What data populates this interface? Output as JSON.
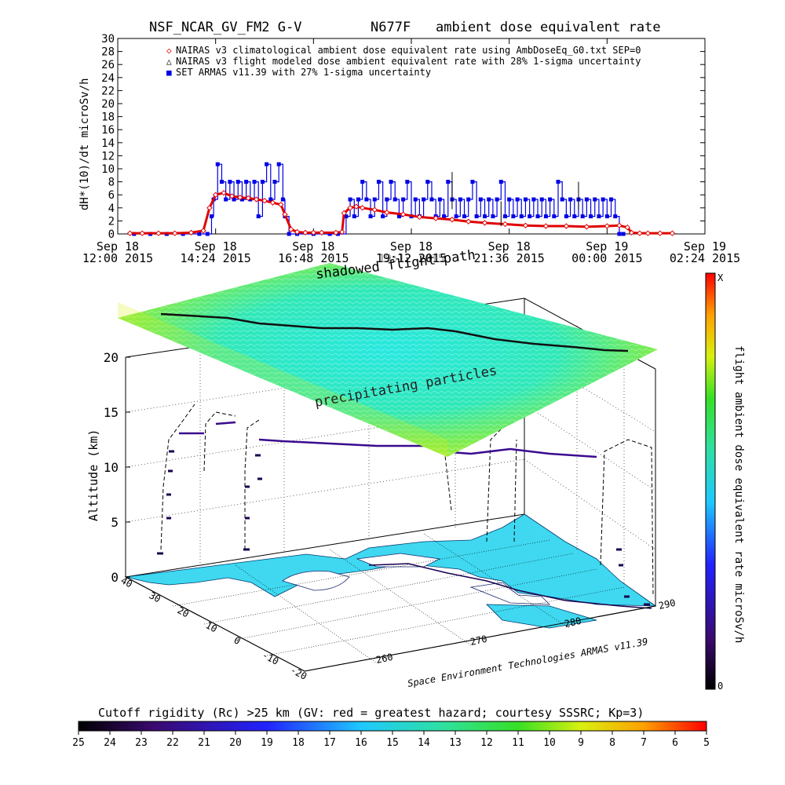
{
  "title": {
    "left": "NSF_NCAR_GV_FM2 G-V",
    "tail": "N677F",
    "right": "ambient dose equivalent rate"
  },
  "colors": {
    "nairas_clim": "#e00000",
    "nairas_flight": "#000000",
    "armas": "#0000e6",
    "ocean": "#3fd8f0",
    "land": "#ffffff",
    "colorbar_stops": [
      "#000000",
      "#3a0a6e",
      "#2222ff",
      "#1ec8ff",
      "#2fe0a0",
      "#36e025",
      "#d8f010",
      "#ffa000",
      "#ff0000"
    ]
  },
  "chart_data": [
    {
      "type": "line",
      "y_label": "dH*(10)/dt microSv/h",
      "ylim": [
        0,
        30
      ],
      "y_ticks": [
        0,
        2,
        4,
        6,
        8,
        10,
        12,
        14,
        16,
        18,
        20,
        22,
        24,
        26,
        28,
        30
      ],
      "xlim_hours": [
        12.0,
        26.4
      ],
      "x_ticks": [
        {
          "l1": "Sep 18",
          "l2": "12:00 2015",
          "h": 12.0
        },
        {
          "l1": "Sep 18",
          "l2": "14:24 2015",
          "h": 14.4
        },
        {
          "l1": "Sep 18",
          "l2": "16:48 2015",
          "h": 16.8
        },
        {
          "l1": "Sep 18",
          "l2": "19:12 2015",
          "h": 19.2
        },
        {
          "l1": "Sep 18",
          "l2": "21:36 2015",
          "h": 21.6
        },
        {
          "l1": "Sep 19",
          "l2": "00:00 2015",
          "h": 24.0
        },
        {
          "l1": "Sep 19",
          "l2": "02:24 2015",
          "h": 26.4
        }
      ],
      "legend": [
        {
          "symbol": "◇",
          "text": "NAIRAS v3 climatological ambient dose equivalent rate using AmbDoseEq_G0.txt SEP=0"
        },
        {
          "symbol": "△",
          "text": "NAIRAS v3 flight modeled dose ambient equivalent rate with 28% 1-sigma uncertainty"
        },
        {
          "symbol": "■",
          "text": "SET ARMAS v11.39 with 27% 1-sigma uncertainty"
        }
      ],
      "series": [
        {
          "name": "NAIRAS v3 climatological",
          "x": [
            12.3,
            12.6,
            13.0,
            13.4,
            13.8,
            14.1,
            14.25,
            14.4,
            14.6,
            14.8,
            15.0,
            15.2,
            15.4,
            15.6,
            15.8,
            16.0,
            16.1,
            16.25,
            16.4,
            16.6,
            16.8,
            17.0,
            17.35,
            17.5,
            17.55,
            17.7,
            17.85,
            18.0,
            18.3,
            18.6,
            19.0,
            19.4,
            19.8,
            20.2,
            20.6,
            21.0,
            21.5,
            22.0,
            22.5,
            23.0,
            23.5,
            24.0,
            24.3,
            24.5,
            24.6,
            24.8,
            25.0,
            25.3,
            25.6
          ],
          "y": [
            0.1,
            0.1,
            0.1,
            0.1,
            0.2,
            0.5,
            4.0,
            6.0,
            6.3,
            5.8,
            5.6,
            5.5,
            5.3,
            5.1,
            4.8,
            4.5,
            3.0,
            0.7,
            0.3,
            0.2,
            0.2,
            0.2,
            0.2,
            0.3,
            3.2,
            4.0,
            4.2,
            4.0,
            3.7,
            3.3,
            3.0,
            2.6,
            2.4,
            2.2,
            1.9,
            1.7,
            1.5,
            1.3,
            1.2,
            1.2,
            1.1,
            1.2,
            1.3,
            1.0,
            0.2,
            0.1,
            0.1,
            0.1,
            0.1
          ]
        },
        {
          "name": "SET ARMAS v11.39",
          "x": [
            12.4,
            12.8,
            13.2,
            13.6,
            14.0,
            14.2,
            14.3,
            14.35,
            14.45,
            14.55,
            14.65,
            14.75,
            14.85,
            14.95,
            15.05,
            15.15,
            15.25,
            15.35,
            15.45,
            15.55,
            15.65,
            15.75,
            15.85,
            15.95,
            16.05,
            16.1,
            16.2,
            16.4,
            16.8,
            17.2,
            17.4,
            17.6,
            17.7,
            17.8,
            17.9,
            18.0,
            18.1,
            18.2,
            18.3,
            18.4,
            18.5,
            18.6,
            18.7,
            18.8,
            18.9,
            19.0,
            19.1,
            19.2,
            19.3,
            19.4,
            19.5,
            19.6,
            19.7,
            19.8,
            19.9,
            20.0,
            20.1,
            20.2,
            20.3,
            20.4,
            20.5,
            20.6,
            20.7,
            20.8,
            20.9,
            21.0,
            21.1,
            21.2,
            21.3,
            21.4,
            21.5,
            21.6,
            21.7,
            21.8,
            21.9,
            22.0,
            22.1,
            22.2,
            22.3,
            22.4,
            22.5,
            22.6,
            22.7,
            22.8,
            22.9,
            23.0,
            23.1,
            23.2,
            23.3,
            23.4,
            23.5,
            23.6,
            23.7,
            23.8,
            23.9,
            24.0,
            24.1,
            24.2,
            24.3,
            24.4
          ],
          "y": [
            0,
            0,
            0,
            0,
            0,
            0,
            2.7,
            5.3,
            10.7,
            8.0,
            5.3,
            8.0,
            5.3,
            8.0,
            5.3,
            8.0,
            5.3,
            8.0,
            2.7,
            8.0,
            10.7,
            5.3,
            8.0,
            10.7,
            5.3,
            2.7,
            0,
            0,
            0,
            0,
            0,
            2.7,
            5.3,
            2.7,
            5.3,
            8.0,
            5.3,
            2.7,
            5.3,
            8.0,
            2.7,
            5.3,
            8.0,
            5.3,
            2.7,
            5.3,
            8.0,
            2.7,
            5.3,
            2.7,
            5.3,
            8.0,
            5.3,
            2.7,
            5.3,
            2.7,
            8.0,
            5.3,
            2.7,
            5.3,
            2.7,
            5.3,
            8.0,
            2.7,
            5.3,
            2.7,
            5.3,
            2.7,
            5.3,
            8.0,
            2.7,
            5.3,
            2.7,
            5.3,
            2.7,
            5.3,
            2.7,
            5.3,
            2.7,
            5.3,
            2.7,
            5.3,
            2.7,
            8.0,
            5.3,
            2.7,
            5.3,
            2.7,
            5.3,
            2.7,
            5.3,
            2.7,
            5.3,
            2.7,
            5.3,
            2.7,
            5.3,
            2.7,
            0,
            0
          ]
        }
      ]
    },
    {
      "type": "3d-trajectory",
      "y_label": "Altitude (km)",
      "z_ticks": [
        0,
        5,
        10,
        15,
        20
      ],
      "lat_ticks": [
        "40",
        "30",
        "20",
        "10",
        "0",
        "-10",
        "-20"
      ],
      "lon_ticks": [
        "260",
        "270",
        "280",
        "290"
      ],
      "annotations": {
        "shadowed": "shadowed flight path",
        "particles": "precipitating particles",
        "overlap_time": "19:12 2015",
        "credit": "Space Environment Technologies ARMAS v11.39"
      },
      "vertical_colorbar": {
        "label": "flight ambient dose equivalent rate microSv/h",
        "top": "X",
        "bottom": "0"
      },
      "horizontal_colorbar": {
        "label": "Cutoff rigidity (Rc) >25 km (GV: red = greatest hazard; courtesy SSSRC; Kp=3)",
        "ticks": [
          "25",
          "24",
          "23",
          "22",
          "21",
          "20",
          "19",
          "18",
          "17",
          "16",
          "15",
          "14",
          "13",
          "12",
          "11",
          "10",
          "9",
          "8",
          "7",
          "6",
          "5"
        ]
      }
    }
  ]
}
